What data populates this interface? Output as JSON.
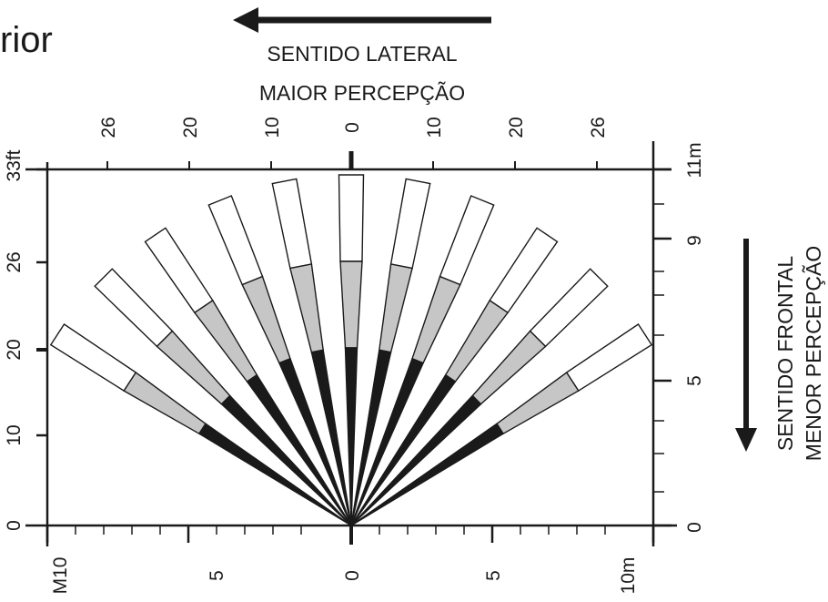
{
  "title_fragment": "rior",
  "lateral_caption": {
    "line1": "SENTIDO LATERAL",
    "line2": "MAIOR PERCEPÇÃO"
  },
  "frontal_caption": {
    "line1": "SENTIDO FRONTAL",
    "line2": "MENOR PERCEPÇÃO"
  },
  "top_axis_ticks_ft": [
    "26",
    "20",
    "10",
    "0",
    "10",
    "20",
    "26"
  ],
  "bottom_axis_ticks_m": [
    "M10",
    "5",
    "0",
    "5",
    "10m"
  ],
  "left_axis_ticks_ft": [
    "33ft",
    "26",
    "20",
    "10",
    "0"
  ],
  "right_axis_ticks_m": [
    "11m",
    "9",
    "5",
    "0"
  ],
  "colors": {
    "ink": "#1a1a1a",
    "gray_zone": "#c6c6c6",
    "white_zone": "#ffffff"
  },
  "detection_beams": [
    {
      "angle_deg": -57
    },
    {
      "angle_deg": -45
    },
    {
      "angle_deg": -34
    },
    {
      "angle_deg": -22
    },
    {
      "angle_deg": -11
    },
    {
      "angle_deg": 0
    },
    {
      "angle_deg": 11
    },
    {
      "angle_deg": 22
    },
    {
      "angle_deg": 34
    },
    {
      "angle_deg": 45
    },
    {
      "angle_deg": 57
    }
  ]
}
